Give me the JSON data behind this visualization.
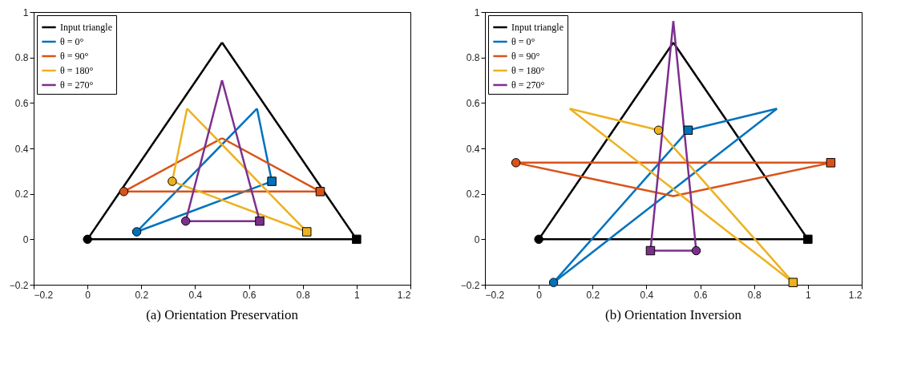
{
  "chart_data": [
    {
      "type": "line",
      "title": "(a) Orientation Preservation",
      "xlim": [
        -0.2,
        1.2
      ],
      "ylim": [
        -0.2,
        1
      ],
      "xticks": [
        -0.2,
        0,
        0.2,
        0.4,
        0.6,
        0.8,
        1,
        1.2
      ],
      "yticks": [
        -0.2,
        0,
        0.2,
        0.4,
        0.6,
        0.8,
        1
      ],
      "legend": "top left",
      "grid": false,
      "line_style": "solid",
      "series": [
        {
          "name": "Input triangle",
          "color": "#000000",
          "x": [
            0,
            0.5
          ],
          "values": [
            0,
            0.866
          ]
        },
        {
          "color": "#000000",
          "x": [
            0.5,
            1
          ],
          "values": [
            0.866,
            0
          ]
        },
        {
          "color": "#000000",
          "x": [
            0,
            1
          ],
          "values": [
            0,
            0
          ]
        },
        {
          "name": "θ = 0°",
          "color": "#0072bd",
          "x": [
            0.183,
            0.63
          ],
          "values": [
            0.033,
            0.575
          ]
        },
        {
          "color": "#0072bd",
          "x": [
            0.63,
            0.685
          ],
          "values": [
            0.575,
            0.255
          ]
        },
        {
          "color": "#0072bd",
          "x": [
            0.183,
            0.685
          ],
          "values": [
            0.033,
            0.255
          ]
        },
        {
          "name": "θ = 90°",
          "color": "#d95319",
          "x": [
            0.135,
            0.5
          ],
          "values": [
            0.21,
            0.445
          ]
        },
        {
          "color": "#d95319",
          "x": [
            0.5,
            0.865
          ],
          "values": [
            0.445,
            0.21
          ]
        },
        {
          "color": "#d95319",
          "x": [
            0.135,
            0.865
          ],
          "values": [
            0.21,
            0.21
          ]
        },
        {
          "name": "θ = 180°",
          "color": "#edb120",
          "x": [
            0.315,
            0.37
          ],
          "values": [
            0.255,
            0.575
          ]
        },
        {
          "color": "#edb120",
          "x": [
            0.37,
            0.815
          ],
          "values": [
            0.575,
            0.033
          ]
        },
        {
          "color": "#edb120",
          "x": [
            0.315,
            0.815
          ],
          "values": [
            0.255,
            0.033
          ]
        },
        {
          "name": "θ = 270°",
          "color": "#7e2f8e",
          "x": [
            0.365,
            0.5
          ],
          "values": [
            0.08,
            0.7
          ]
        },
        {
          "color": "#7e2f8e",
          "x": [
            0.5,
            0.64
          ],
          "values": [
            0.7,
            0.08
          ]
        },
        {
          "color": "#7e2f8e",
          "x": [
            0.365,
            0.64
          ],
          "values": [
            0.08,
            0.08
          ]
        },
        {
          "type": "scatter",
          "marker": "circle",
          "color": "#000000",
          "x": [
            0
          ],
          "values": [
            0
          ]
        },
        {
          "type": "scatter",
          "marker": "square",
          "color": "#000000",
          "x": [
            1
          ],
          "values": [
            0
          ]
        },
        {
          "type": "scatter",
          "marker": "circle",
          "color": "#0072bd",
          "x": [
            0.183
          ],
          "values": [
            0.033
          ]
        },
        {
          "type": "scatter",
          "marker": "square",
          "color": "#0072bd",
          "x": [
            0.685
          ],
          "values": [
            0.255
          ]
        },
        {
          "type": "scatter",
          "marker": "circle",
          "color": "#d95319",
          "x": [
            0.135
          ],
          "values": [
            0.21
          ]
        },
        {
          "type": "scatter",
          "marker": "square",
          "color": "#d95319",
          "x": [
            0.865
          ],
          "values": [
            0.21
          ]
        },
        {
          "type": "scatter",
          "marker": "circle",
          "color": "#edb120",
          "x": [
            0.315
          ],
          "values": [
            0.255
          ]
        },
        {
          "type": "scatter",
          "marker": "square",
          "color": "#edb120",
          "x": [
            0.815
          ],
          "values": [
            0.033
          ]
        },
        {
          "type": "scatter",
          "marker": "circle",
          "color": "#7e2f8e",
          "x": [
            0.365
          ],
          "values": [
            0.08
          ]
        },
        {
          "type": "scatter",
          "marker": "square",
          "color": "#7e2f8e",
          "x": [
            0.64
          ],
          "values": [
            0.08
          ]
        }
      ]
    },
    {
      "type": "line",
      "title": "(b) Orientation Inversion",
      "xlim": [
        -0.2,
        1.2
      ],
      "ylim": [
        -0.2,
        1
      ],
      "xticks": [
        -0.2,
        0,
        0.2,
        0.4,
        0.6,
        0.8,
        1,
        1.2
      ],
      "yticks": [
        -0.2,
        0,
        0.2,
        0.4,
        0.6,
        0.8,
        1
      ],
      "legend": "top left",
      "grid": false,
      "line_style": "solid",
      "series": [
        {
          "name": "Input triangle",
          "color": "#000000",
          "x": [
            0,
            0.5
          ],
          "values": [
            0,
            0.866
          ]
        },
        {
          "color": "#000000",
          "x": [
            0.5,
            1
          ],
          "values": [
            0.866,
            0
          ]
        },
        {
          "color": "#000000",
          "x": [
            0,
            1
          ],
          "values": [
            0,
            0
          ]
        },
        {
          "name": "θ = 0°",
          "color": "#0072bd",
          "x": [
            0.055,
            0.885
          ],
          "values": [
            -0.19,
            0.575
          ]
        },
        {
          "color": "#0072bd",
          "x": [
            0.555,
            0.885
          ],
          "values": [
            0.48,
            0.575
          ]
        },
        {
          "color": "#0072bd",
          "x": [
            0.055,
            0.555
          ],
          "values": [
            -0.19,
            0.48
          ]
        },
        {
          "name": "θ = 90°",
          "color": "#d95319",
          "x": [
            -0.085,
            0.5,
            1.085
          ],
          "values": [
            0.337,
            0.19,
            0.337
          ]
        },
        {
          "color": "#d95319",
          "x": [
            -0.085,
            1.085
          ],
          "values": [
            0.337,
            0.337
          ]
        },
        {
          "name": "θ = 180°",
          "color": "#edb120",
          "x": [
            0.115,
            0.445
          ],
          "values": [
            0.575,
            0.48
          ]
        },
        {
          "color": "#edb120",
          "x": [
            0.115,
            0.945
          ],
          "values": [
            0.575,
            -0.19
          ]
        },
        {
          "color": "#edb120",
          "x": [
            0.445,
            0.945
          ],
          "values": [
            0.48,
            -0.19
          ]
        },
        {
          "name": "θ = 270°",
          "color": "#7e2f8e",
          "x": [
            0.415,
            0.5
          ],
          "values": [
            -0.05,
            0.96
          ]
        },
        {
          "color": "#7e2f8e",
          "x": [
            0.5,
            0.585
          ],
          "values": [
            0.96,
            -0.05
          ]
        },
        {
          "color": "#7e2f8e",
          "x": [
            0.415,
            0.585
          ],
          "values": [
            -0.05,
            -0.05
          ]
        },
        {
          "type": "scatter",
          "marker": "circle",
          "color": "#000000",
          "x": [
            0
          ],
          "values": [
            0
          ]
        },
        {
          "type": "scatter",
          "marker": "square",
          "color": "#000000",
          "x": [
            1
          ],
          "values": [
            0
          ]
        },
        {
          "type": "scatter",
          "marker": "circle",
          "color": "#0072bd",
          "x": [
            0.055
          ],
          "values": [
            -0.19
          ]
        },
        {
          "type": "scatter",
          "marker": "square",
          "color": "#0072bd",
          "x": [
            0.555
          ],
          "values": [
            0.48
          ]
        },
        {
          "type": "scatter",
          "marker": "circle",
          "color": "#d95319",
          "x": [
            -0.085
          ],
          "values": [
            0.337
          ]
        },
        {
          "type": "scatter",
          "marker": "square",
          "color": "#d95319",
          "x": [
            1.085
          ],
          "values": [
            0.337
          ]
        },
        {
          "type": "scatter",
          "marker": "circle",
          "color": "#edb120",
          "x": [
            0.445
          ],
          "values": [
            0.48
          ]
        },
        {
          "type": "scatter",
          "marker": "square",
          "color": "#edb120",
          "x": [
            0.945
          ],
          "values": [
            -0.19
          ]
        },
        {
          "type": "scatter",
          "marker": "circle",
          "color": "#7e2f8e",
          "x": [
            0.585
          ],
          "values": [
            -0.05
          ]
        },
        {
          "type": "scatter",
          "marker": "square",
          "color": "#7e2f8e",
          "x": [
            0.415
          ],
          "values": [
            -0.05
          ]
        }
      ]
    }
  ]
}
